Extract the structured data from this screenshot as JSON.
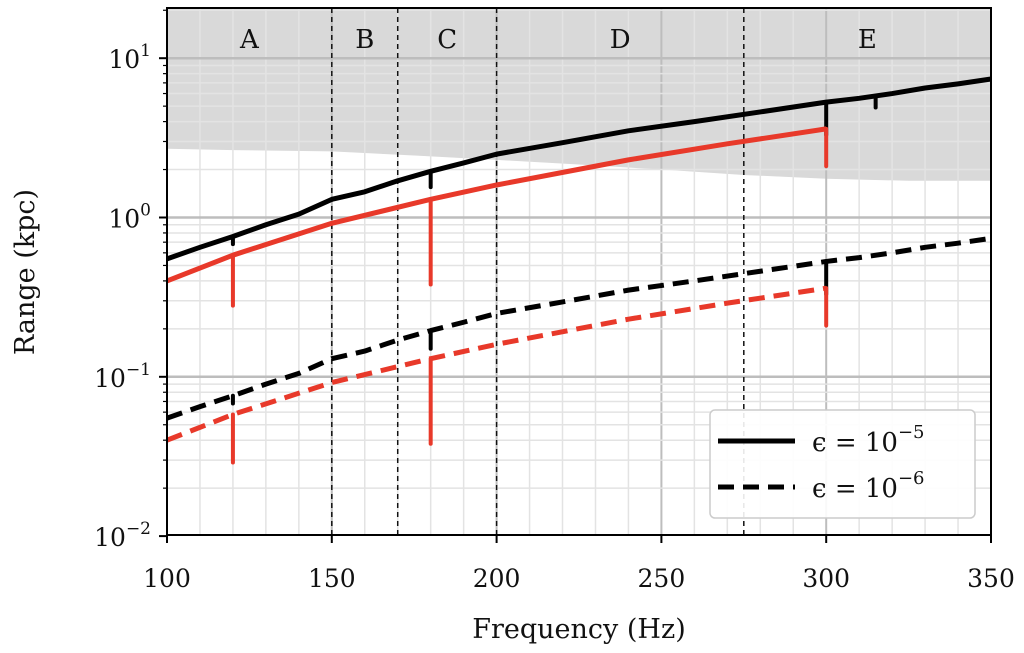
{
  "chart_data": {
    "type": "line",
    "title": "",
    "xlabel": "Frequency (Hz)",
    "ylabel": "Range (kpc)",
    "xlim": [
      100,
      350
    ],
    "ylim": [
      0.01,
      20
    ],
    "yscale": "log",
    "grid": true,
    "x_ticks": [
      100,
      150,
      200,
      250,
      300,
      350
    ],
    "x_tick_labels": [
      "100",
      "150",
      "200",
      "250",
      "300",
      "350"
    ],
    "y_ticks": [
      0.01,
      0.1,
      1,
      10
    ],
    "y_tick_labels": [
      {
        "base": "10",
        "exp": "−2"
      },
      {
        "base": "10",
        "exp": "−1"
      },
      {
        "base": "10",
        "exp": "0"
      },
      {
        "base": "10",
        "exp": "1"
      }
    ],
    "region_boundaries": [
      150,
      170,
      200,
      275
    ],
    "regions": [
      {
        "label": "A",
        "center": 125
      },
      {
        "label": "B",
        "center": 160
      },
      {
        "label": "C",
        "center": 185
      },
      {
        "label": "D",
        "center": 237.5
      },
      {
        "label": "E",
        "center": 312.5
      }
    ],
    "shaded_band": {
      "color": "#d9d9d9",
      "lower": [
        [
          100,
          2.7
        ],
        [
          120,
          2.65
        ],
        [
          150,
          2.6
        ],
        [
          175,
          2.45
        ],
        [
          200,
          2.3
        ],
        [
          225,
          2.15
        ],
        [
          250,
          2.0
        ],
        [
          275,
          1.85
        ],
        [
          300,
          1.75
        ],
        [
          325,
          1.7
        ],
        [
          350,
          1.7
        ]
      ],
      "upper": 20
    },
    "series": [
      {
        "name": "black-solid",
        "color": "#000000",
        "style": "solid",
        "points": [
          [
            100,
            0.55
          ],
          [
            110,
            0.65
          ],
          [
            120,
            0.76
          ],
          [
            130,
            0.9
          ],
          [
            140,
            1.05
          ],
          [
            150,
            1.3
          ],
          [
            160,
            1.45
          ],
          [
            170,
            1.7
          ],
          [
            180,
            1.95
          ],
          [
            190,
            2.2
          ],
          [
            200,
            2.5
          ],
          [
            220,
            2.95
          ],
          [
            240,
            3.5
          ],
          [
            260,
            4.0
          ],
          [
            280,
            4.6
          ],
          [
            300,
            5.3
          ],
          [
            310,
            5.6
          ],
          [
            320,
            6.0
          ],
          [
            330,
            6.5
          ],
          [
            340,
            6.9
          ],
          [
            350,
            7.4
          ]
        ],
        "dips": [
          [
            120,
            0.68
          ],
          [
            180,
            1.55
          ],
          [
            300,
            3.3
          ],
          [
            315,
            4.9
          ]
        ]
      },
      {
        "name": "red-solid",
        "color": "#e8392a",
        "style": "solid",
        "points": [
          [
            100,
            0.4
          ],
          [
            120,
            0.58
          ],
          [
            150,
            0.92
          ],
          [
            180,
            1.3
          ],
          [
            200,
            1.6
          ],
          [
            240,
            2.3
          ],
          [
            270,
            2.9
          ],
          [
            300,
            3.6
          ]
        ],
        "dips": [
          [
            120,
            0.28
          ],
          [
            180,
            0.38
          ],
          [
            300,
            2.1
          ]
        ]
      },
      {
        "name": "black-dashed",
        "color": "#000000",
        "style": "dashed",
        "points": [
          [
            100,
            0.055
          ],
          [
            110,
            0.065
          ],
          [
            120,
            0.076
          ],
          [
            130,
            0.09
          ],
          [
            140,
            0.105
          ],
          [
            150,
            0.13
          ],
          [
            160,
            0.145
          ],
          [
            170,
            0.17
          ],
          [
            180,
            0.195
          ],
          [
            190,
            0.22
          ],
          [
            200,
            0.25
          ],
          [
            220,
            0.295
          ],
          [
            240,
            0.35
          ],
          [
            260,
            0.4
          ],
          [
            280,
            0.46
          ],
          [
            300,
            0.53
          ],
          [
            310,
            0.56
          ],
          [
            320,
            0.6
          ],
          [
            330,
            0.65
          ],
          [
            340,
            0.69
          ],
          [
            350,
            0.74
          ]
        ],
        "dips": [
          [
            120,
            0.068
          ],
          [
            180,
            0.15
          ],
          [
            300,
            0.33
          ]
        ]
      },
      {
        "name": "red-dashed",
        "color": "#e8392a",
        "style": "dashed",
        "points": [
          [
            100,
            0.04
          ],
          [
            120,
            0.058
          ],
          [
            150,
            0.092
          ],
          [
            180,
            0.13
          ],
          [
            200,
            0.16
          ],
          [
            240,
            0.23
          ],
          [
            270,
            0.29
          ],
          [
            300,
            0.36
          ]
        ],
        "dips": [
          [
            120,
            0.029
          ],
          [
            180,
            0.038
          ],
          [
            300,
            0.21
          ]
        ]
      }
    ],
    "legend": {
      "placement": "bottom-right",
      "entries": [
        {
          "style": "solid",
          "prefix": "ϵ = 10",
          "exp": "−5"
        },
        {
          "style": "dashed",
          "prefix": "ϵ = 10",
          "exp": "−6"
        }
      ]
    }
  }
}
